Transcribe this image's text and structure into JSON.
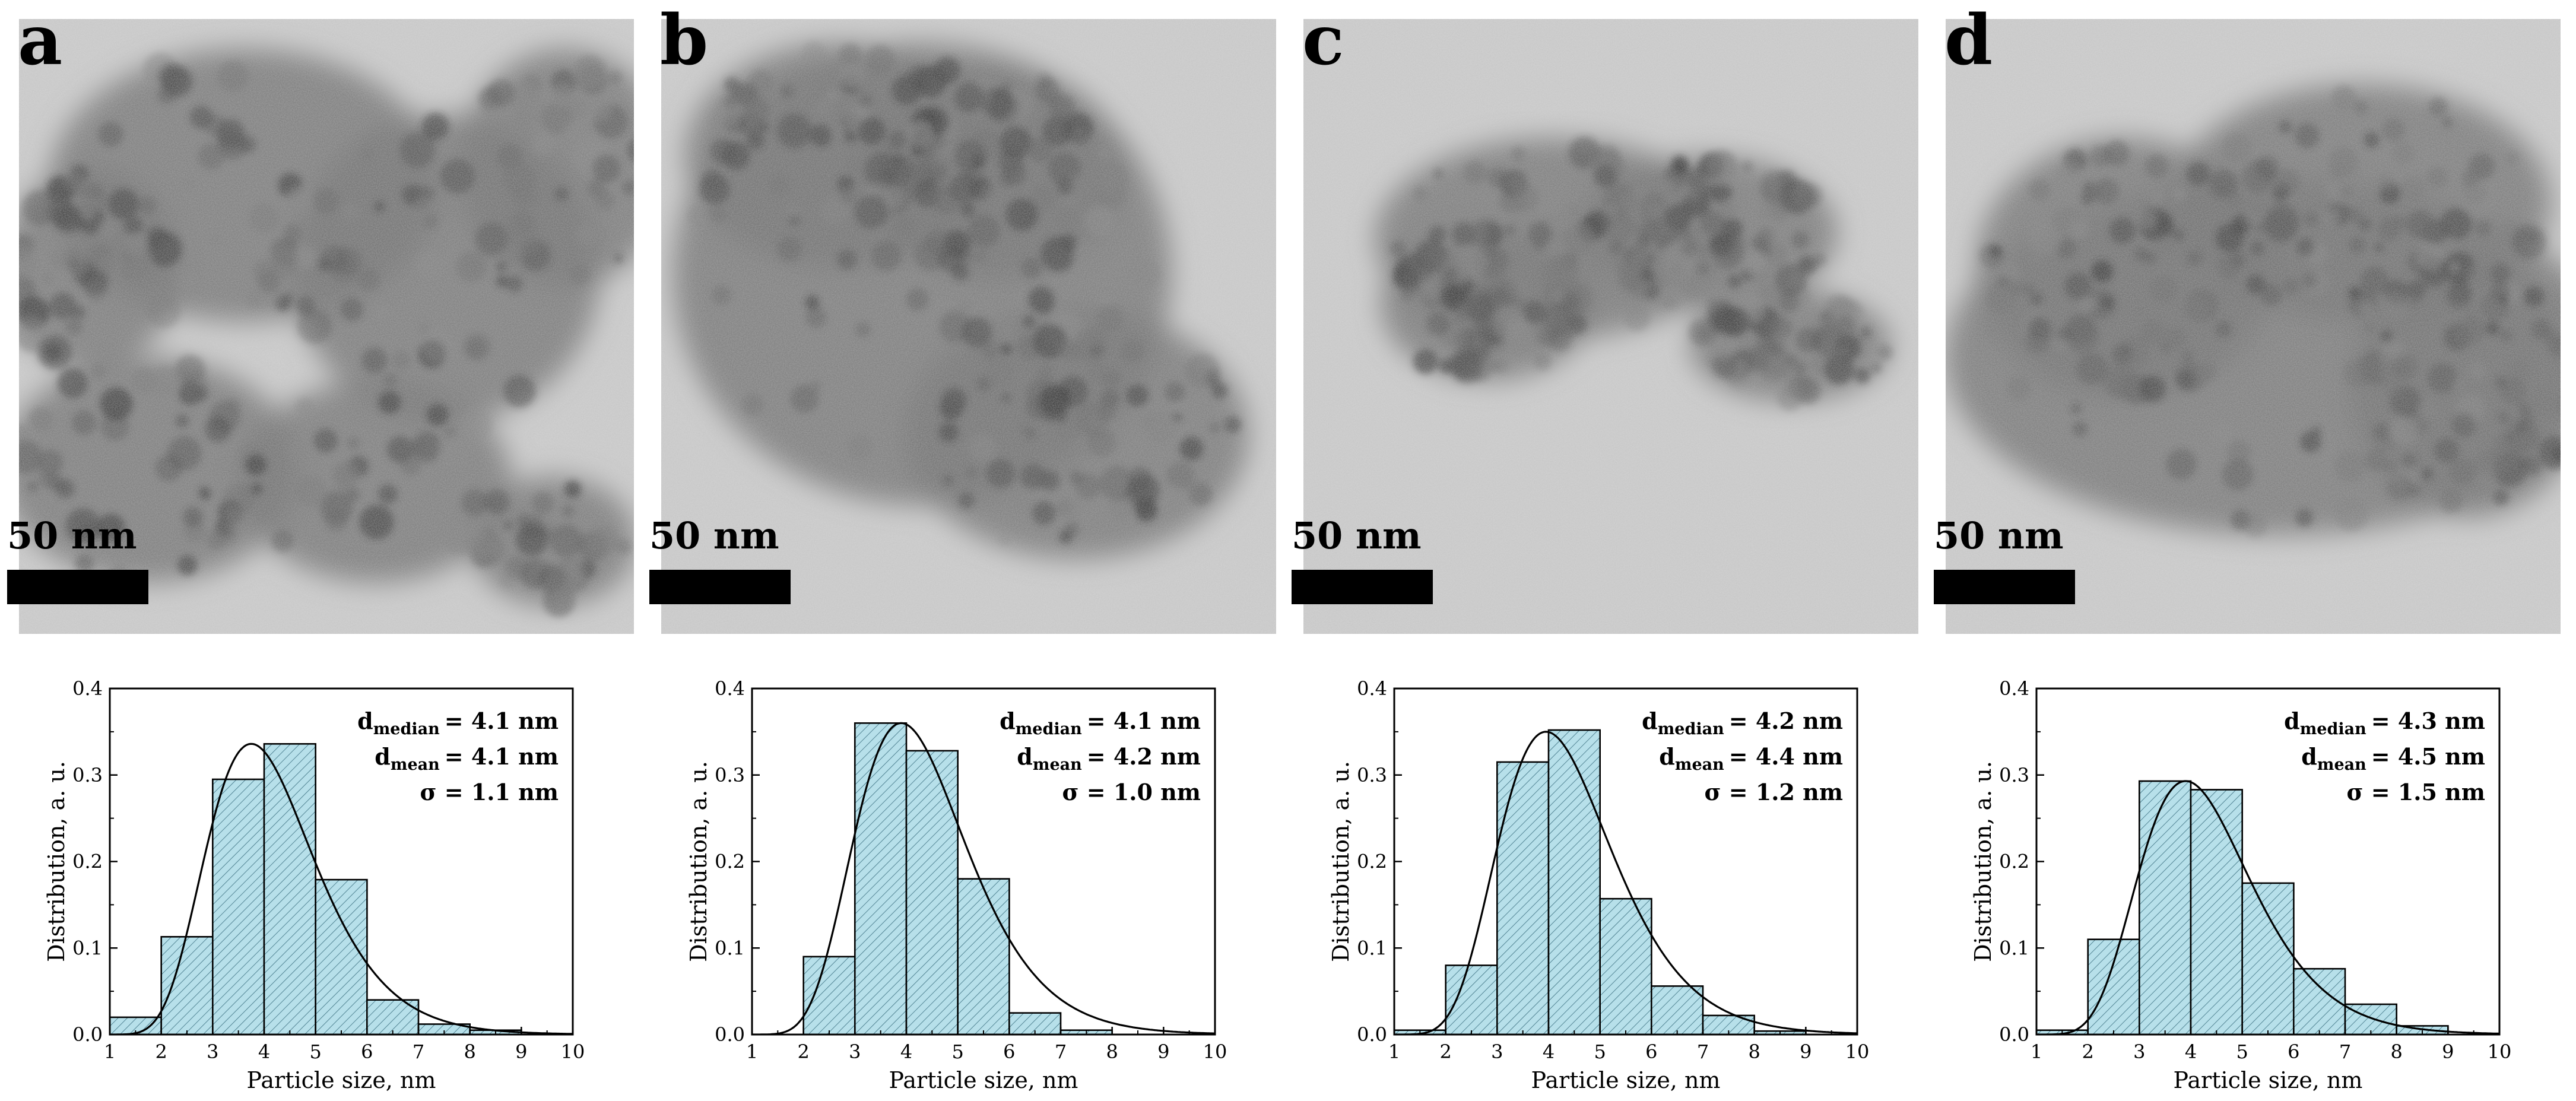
{
  "panels": [
    {
      "label": "a",
      "scale_bar": "50 nm",
      "chart_data": {
        "type": "bar",
        "bin_edges": [
          1,
          2,
          3,
          4,
          5,
          6,
          7,
          8,
          9,
          10
        ],
        "values": [
          0.02,
          0.113,
          0.295,
          0.336,
          0.179,
          0.04,
          0.012,
          0.005,
          0.0
        ],
        "fit_curve": {
          "type": "lognormal",
          "mode": 3.75,
          "peak": 0.336
        },
        "annotations": [
          "= 4.1 nm",
          "= 4.1 nm",
          "σ = 1.1 nm"
        ],
        "xlabel": "Particle size, nm",
        "ylabel": "Distribution, a. u.",
        "xlim": [
          1,
          10
        ],
        "ylim": [
          0,
          0.4
        ],
        "xticks": [
          "1",
          "2",
          "3",
          "4",
          "5",
          "6",
          "7",
          "8",
          "9",
          "10"
        ],
        "yticks": [
          "0.0",
          "0.1",
          "0.2",
          "0.3",
          "0.4"
        ]
      }
    },
    {
      "label": "b",
      "scale_bar": "50 nm",
      "chart_data": {
        "type": "bar",
        "bin_edges": [
          1,
          2,
          3,
          4,
          5,
          6,
          7,
          8,
          9,
          10
        ],
        "values": [
          0.0,
          0.09,
          0.36,
          0.328,
          0.18,
          0.025,
          0.005,
          0.0,
          0.0
        ],
        "fit_curve": {
          "type": "lognormal",
          "mode": 3.9,
          "peak": 0.36
        },
        "annotations": [
          "= 4.1 nm",
          "= 4.2 nm",
          "σ = 1.0 nm"
        ],
        "xlabel": "Particle size, nm",
        "ylabel": "Distribution, a. u.",
        "xlim": [
          1,
          10
        ],
        "ylim": [
          0,
          0.4
        ],
        "xticks": [
          "1",
          "2",
          "3",
          "4",
          "5",
          "6",
          "7",
          "8",
          "9",
          "10"
        ],
        "yticks": [
          "0.0",
          "0.1",
          "0.2",
          "0.3",
          "0.4"
        ]
      }
    },
    {
      "label": "c",
      "scale_bar": "50 nm",
      "chart_data": {
        "type": "bar",
        "bin_edges": [
          1,
          2,
          3,
          4,
          5,
          6,
          7,
          8,
          9,
          10
        ],
        "values": [
          0.005,
          0.08,
          0.315,
          0.352,
          0.157,
          0.056,
          0.022,
          0.004,
          0.0
        ],
        "fit_curve": {
          "type": "lognormal",
          "mode": 3.95,
          "peak": 0.35
        },
        "annotations": [
          "= 4.2 nm",
          "= 4.4 nm",
          "σ = 1.2 nm"
        ],
        "xlabel": "Particle size, nm",
        "ylabel": "Distribution, a. u.",
        "xlim": [
          1,
          10
        ],
        "ylim": [
          0,
          0.4
        ],
        "xticks": [
          "1",
          "2",
          "3",
          "4",
          "5",
          "6",
          "7",
          "8",
          "9",
          "10"
        ],
        "yticks": [
          "0.0",
          "0.1",
          "0.2",
          "0.3",
          "0.4"
        ]
      }
    },
    {
      "label": "d",
      "scale_bar": "50 nm",
      "chart_data": {
        "type": "bar",
        "bin_edges": [
          1,
          2,
          3,
          4,
          5,
          6,
          7,
          8,
          9,
          10
        ],
        "values": [
          0.005,
          0.11,
          0.293,
          0.283,
          0.175,
          0.076,
          0.035,
          0.01,
          0.0
        ],
        "fit_curve": {
          "type": "lognormal",
          "mode": 3.9,
          "peak": 0.293
        },
        "annotations": [
          "= 4.3 nm",
          "= 4.5 nm",
          "σ = 1.5 nm"
        ],
        "xlabel": "Particle size, nm",
        "ylabel": "Distribution, a. u.",
        "xlim": [
          1,
          10
        ],
        "ylim": [
          0,
          0.4
        ],
        "xticks": [
          "1",
          "2",
          "3",
          "4",
          "5",
          "6",
          "7",
          "8",
          "9",
          "10"
        ],
        "yticks": [
          "0.0",
          "0.1",
          "0.2",
          "0.3",
          "0.4"
        ]
      }
    }
  ],
  "annotation_symbol": "d",
  "annotation_subscripts": [
    "median",
    "mean"
  ],
  "colors": {
    "bar_fill": "#b7e0ea",
    "bar_hatch": "#3a6f80",
    "bar_edge": "#000000",
    "fit_line": "#000000",
    "scale_bar": "#000000"
  }
}
